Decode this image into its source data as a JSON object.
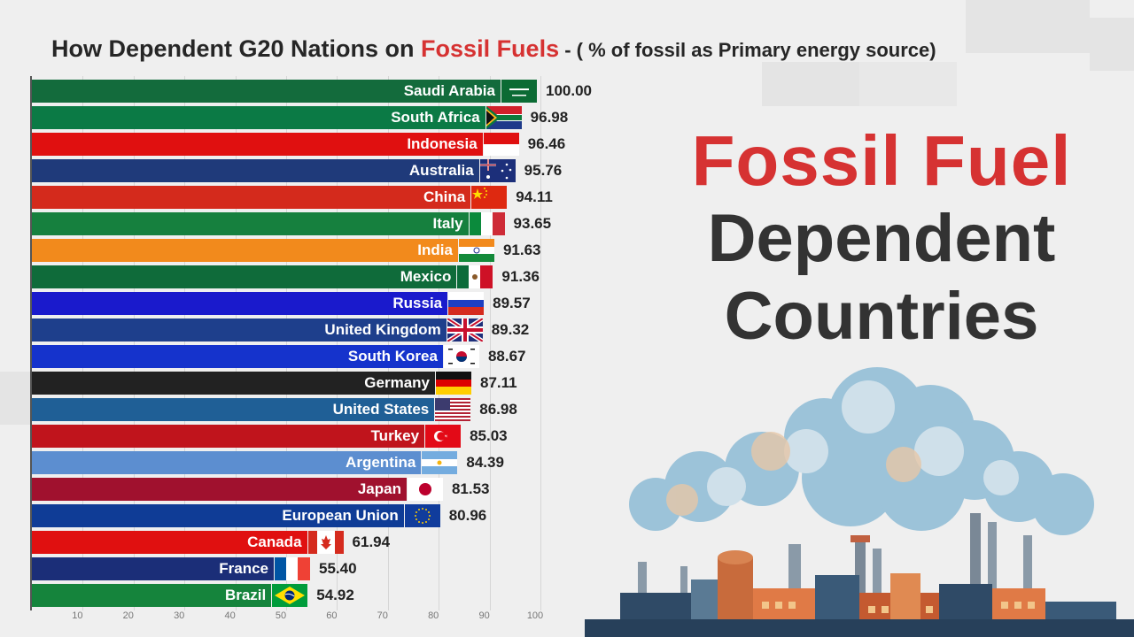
{
  "title": {
    "part1": "How Dependent G20 Nations on ",
    "highlight": "Fossil Fuels",
    "part2": " - ( % of fossil as Primary energy source)"
  },
  "headline": {
    "line1": "Fossil Fuel",
    "line2": "Dependent",
    "line3": "Countries"
  },
  "colors": {
    "accent": "#d63232",
    "headline_dark": "#333333"
  },
  "chart_data": {
    "type": "bar",
    "orientation": "horizontal",
    "categories": [
      "Saudi Arabia",
      "South Africa",
      "Indonesia",
      "Australia",
      "China",
      "Italy",
      "India",
      "Mexico",
      "Russia",
      "United Kingdom",
      "South Korea",
      "Germany",
      "United States",
      "Turkey",
      "Argentina",
      "Japan",
      "European Union",
      "Canada",
      "France",
      "Brazil"
    ],
    "values": [
      100.0,
      96.98,
      96.46,
      95.76,
      94.11,
      93.65,
      91.63,
      91.36,
      89.57,
      89.32,
      88.67,
      87.11,
      86.98,
      85.03,
      84.39,
      81.53,
      80.96,
      61.94,
      55.4,
      54.92
    ],
    "value_labels": [
      "100.00",
      "96.98",
      "96.46",
      "95.76",
      "94.11",
      "93.65",
      "91.63",
      "91.36",
      "89.57",
      "89.32",
      "88.67",
      "87.11",
      "86.98",
      "85.03",
      "84.39",
      "81.53",
      "80.96",
      "61.94",
      "55.40",
      "54.92"
    ],
    "bar_colors": [
      "#136b3c",
      "#0b7a45",
      "#e01010",
      "#1f3a7a",
      "#d42a1c",
      "#16803e",
      "#f28a1c",
      "#0f6b3a",
      "#1a1acc",
      "#1e3f8c",
      "#1533cc",
      "#222222",
      "#1f5f96",
      "#c0141c",
      "#5c8ed0",
      "#a0112e",
      "#0f3c96",
      "#e01010",
      "#1b2e78",
      "#15843c"
    ],
    "flags": [
      "saudi-arabia-flag",
      "south-africa-flag",
      "indonesia-flag",
      "australia-flag",
      "china-flag",
      "italy-flag",
      "india-flag",
      "mexico-flag",
      "russia-flag",
      "united-kingdom-flag",
      "south-korea-flag",
      "germany-flag",
      "united-states-flag",
      "turkey-flag",
      "argentina-flag",
      "japan-flag",
      "european-union-flag",
      "canada-flag",
      "france-flag",
      "brazil-flag"
    ],
    "x_ticks": [
      "10",
      "20",
      "30",
      "40",
      "50",
      "60",
      "70",
      "80",
      "90",
      "100"
    ],
    "xlim": [
      0,
      100
    ],
    "xlabel": "",
    "ylabel": "",
    "grid": true,
    "legend": "none"
  }
}
